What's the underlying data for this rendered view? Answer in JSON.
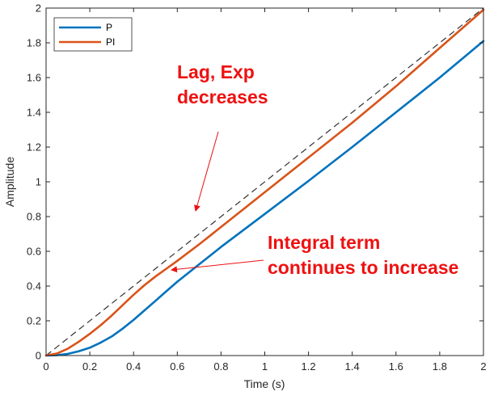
{
  "chart_data": {
    "type": "line",
    "xlabel": "Time (s)",
    "ylabel": "Amplitude",
    "xlim": [
      0,
      2
    ],
    "ylim": [
      0,
      2
    ],
    "xticks": [
      "0",
      "0.2",
      "0.4",
      "0.6",
      "0.8",
      "1",
      "1.2",
      "1.4",
      "1.6",
      "1.8",
      "2"
    ],
    "yticks": [
      "0",
      "0.2",
      "0.4",
      "0.6",
      "0.8",
      "1",
      "1.2",
      "1.4",
      "1.6",
      "1.8",
      "2"
    ],
    "grid": false,
    "legend_position": "top-left",
    "reference": {
      "style": "dashed",
      "color": "#333333",
      "x": [
        0,
        2
      ],
      "y": [
        0,
        2
      ]
    },
    "series": [
      {
        "name": "P",
        "color": "#0072BD",
        "x": [
          0,
          0.05,
          0.1,
          0.15,
          0.2,
          0.25,
          0.3,
          0.35,
          0.4,
          0.45,
          0.5,
          0.55,
          0.6,
          0.65,
          0.7,
          0.75,
          0.8,
          1.0,
          1.2,
          1.4,
          1.6,
          1.8,
          2.0
        ],
        "y": [
          0,
          0.002,
          0.01,
          0.025,
          0.045,
          0.075,
          0.11,
          0.155,
          0.205,
          0.26,
          0.315,
          0.37,
          0.425,
          0.475,
          0.525,
          0.575,
          0.625,
          0.815,
          1.005,
          1.2,
          1.4,
          1.6,
          1.81
        ]
      },
      {
        "name": "PI",
        "color": "#D95319",
        "x": [
          0,
          0.05,
          0.1,
          0.15,
          0.2,
          0.25,
          0.3,
          0.35,
          0.4,
          0.45,
          0.5,
          0.55,
          0.6,
          0.7,
          0.8,
          1.0,
          1.2,
          1.4,
          1.6,
          1.8,
          2.0
        ],
        "y": [
          0,
          0.012,
          0.04,
          0.08,
          0.125,
          0.175,
          0.23,
          0.29,
          0.35,
          0.405,
          0.455,
          0.5,
          0.545,
          0.64,
          0.74,
          0.94,
          1.14,
          1.34,
          1.55,
          1.77,
          1.99
        ]
      }
    ],
    "annotations": [
      {
        "lines": [
          "Lag, Exp",
          "decreases"
        ],
        "arrow_to": [
          0.69,
          0.66
        ]
      },
      {
        "lines": [
          "Integral term",
          "continues to increase"
        ],
        "arrow_to": [
          0.57,
          0.5
        ]
      }
    ]
  }
}
